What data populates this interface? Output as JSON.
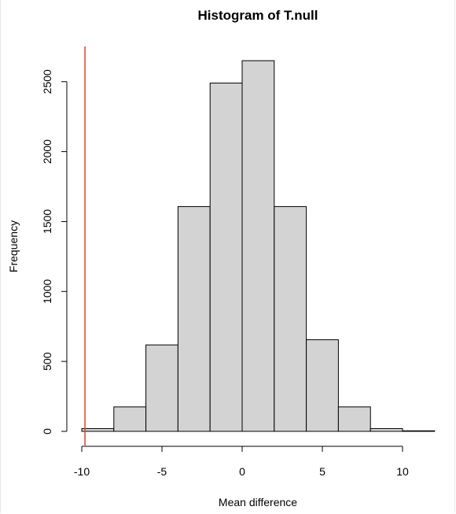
{
  "chart_data": {
    "type": "bar",
    "title": "Histogram of T.null",
    "xlabel": "Mean difference",
    "ylabel": "Frequency",
    "bins": [
      {
        "from": -10,
        "to": -8,
        "count": 20
      },
      {
        "from": -8,
        "to": -6,
        "count": 175
      },
      {
        "from": -6,
        "to": -4,
        "count": 618
      },
      {
        "from": -4,
        "to": -2,
        "count": 1607
      },
      {
        "from": -2,
        "to": 0,
        "count": 2490
      },
      {
        "from": 0,
        "to": 2,
        "count": 2650
      },
      {
        "from": 2,
        "to": 4,
        "count": 1607
      },
      {
        "from": 4,
        "to": 6,
        "count": 655
      },
      {
        "from": 6,
        "to": 8,
        "count": 175
      },
      {
        "from": 8,
        "to": 10,
        "count": 20
      },
      {
        "from": 10,
        "to": 12,
        "count": 4
      }
    ],
    "x_ticks": [
      -10,
      -5,
      0,
      5,
      10
    ],
    "x_tick_labels": [
      "-10",
      "-5",
      "0",
      "5",
      "10"
    ],
    "y_ticks": [
      0,
      500,
      1000,
      1500,
      2000,
      2500
    ],
    "y_tick_labels": [
      "0",
      "500",
      "1000",
      "1500",
      "2000",
      "2500"
    ],
    "xlim": [
      -10,
      12
    ],
    "ylim": [
      0,
      2750
    ],
    "reference_line": {
      "x": -9.8,
      "color": "#d9452b"
    },
    "colors": {
      "bar_fill": "#d3d3d3",
      "bar_stroke": "#000000"
    },
    "grid": false,
    "legend": "none"
  }
}
